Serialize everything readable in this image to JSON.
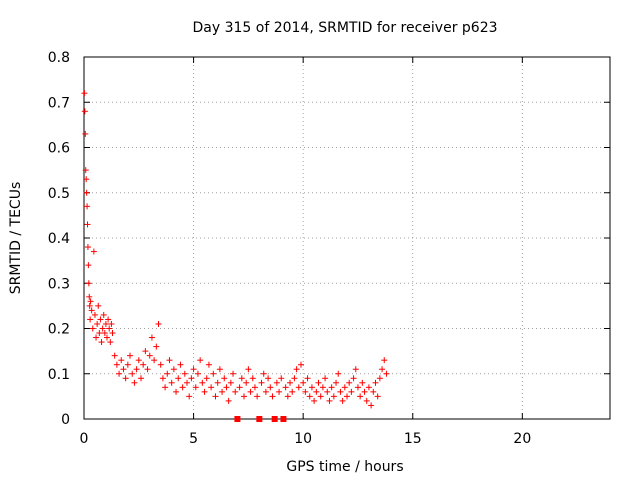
{
  "chart_data": {
    "type": "scatter",
    "title": "Day 315 of 2014, SRMTID for receiver p623",
    "xlabel": "GPS time / hours",
    "ylabel": "SRMTID / TECUs",
    "xlim": [
      0,
      24
    ],
    "ylim": [
      0,
      0.8
    ],
    "xticks": [
      0,
      5,
      10,
      15,
      20
    ],
    "yticks": [
      0,
      0.1,
      0.2,
      0.3,
      0.4,
      0.5,
      0.6,
      0.7,
      0.8
    ],
    "ytick_labels": [
      "0",
      "0.1",
      "0.2",
      "0.3",
      "0.4",
      "0.5",
      "0.6",
      "0.7",
      "0.8"
    ],
    "grid": true,
    "marker": "plus",
    "color": "#ff0000",
    "series": [
      {
        "points": [
          [
            0.02,
            0.72
          ],
          [
            0.04,
            0.68
          ],
          [
            0.06,
            0.63
          ],
          [
            0.08,
            0.55
          ],
          [
            0.1,
            0.53
          ],
          [
            0.12,
            0.5
          ],
          [
            0.14,
            0.47
          ],
          [
            0.16,
            0.43
          ],
          [
            0.18,
            0.38
          ],
          [
            0.2,
            0.34
          ],
          [
            0.22,
            0.3
          ],
          [
            0.24,
            0.27
          ],
          [
            0.26,
            0.25
          ],
          [
            0.28,
            0.22
          ],
          [
            0.3,
            0.26
          ],
          [
            0.35,
            0.24
          ],
          [
            0.4,
            0.2
          ],
          [
            0.45,
            0.37
          ],
          [
            0.5,
            0.23
          ],
          [
            0.55,
            0.18
          ],
          [
            0.6,
            0.21
          ],
          [
            0.65,
            0.25
          ],
          [
            0.7,
            0.19
          ],
          [
            0.75,
            0.22
          ],
          [
            0.8,
            0.17
          ],
          [
            0.85,
            0.2
          ],
          [
            0.9,
            0.23
          ],
          [
            0.95,
            0.19
          ],
          [
            1.0,
            0.21
          ],
          [
            1.05,
            0.18
          ],
          [
            1.1,
            0.22
          ],
          [
            1.15,
            0.2
          ],
          [
            1.2,
            0.17
          ],
          [
            1.25,
            0.21
          ],
          [
            1.3,
            0.19
          ],
          [
            1.4,
            0.14
          ],
          [
            1.5,
            0.12
          ],
          [
            1.6,
            0.1
          ],
          [
            1.7,
            0.13
          ],
          [
            1.8,
            0.11
          ],
          [
            1.9,
            0.09
          ],
          [
            2.0,
            0.12
          ],
          [
            2.1,
            0.14
          ],
          [
            2.2,
            0.1
          ],
          [
            2.3,
            0.08
          ],
          [
            2.4,
            0.11
          ],
          [
            2.5,
            0.13
          ],
          [
            2.6,
            0.09
          ],
          [
            2.7,
            0.12
          ],
          [
            2.8,
            0.15
          ],
          [
            2.9,
            0.11
          ],
          [
            3.0,
            0.14
          ],
          [
            3.1,
            0.18
          ],
          [
            3.2,
            0.13
          ],
          [
            3.3,
            0.16
          ],
          [
            3.4,
            0.21
          ],
          [
            3.5,
            0.12
          ],
          [
            3.6,
            0.09
          ],
          [
            3.7,
            0.07
          ],
          [
            3.8,
            0.1
          ],
          [
            3.9,
            0.13
          ],
          [
            4.0,
            0.08
          ],
          [
            4.1,
            0.11
          ],
          [
            4.2,
            0.06
          ],
          [
            4.3,
            0.09
          ],
          [
            4.4,
            0.12
          ],
          [
            4.5,
            0.07
          ],
          [
            4.6,
            0.1
          ],
          [
            4.7,
            0.08
          ],
          [
            4.8,
            0.05
          ],
          [
            4.9,
            0.09
          ],
          [
            5.0,
            0.11
          ],
          [
            5.1,
            0.07
          ],
          [
            5.2,
            0.1
          ],
          [
            5.3,
            0.13
          ],
          [
            5.4,
            0.08
          ],
          [
            5.5,
            0.06
          ],
          [
            5.6,
            0.09
          ],
          [
            5.7,
            0.12
          ],
          [
            5.8,
            0.07
          ],
          [
            5.9,
            0.1
          ],
          [
            6.0,
            0.05
          ],
          [
            6.1,
            0.08
          ],
          [
            6.2,
            0.11
          ],
          [
            6.3,
            0.06
          ],
          [
            6.4,
            0.09
          ],
          [
            6.5,
            0.07
          ],
          [
            6.6,
            0.04
          ],
          [
            6.7,
            0.08
          ],
          [
            6.8,
            0.1
          ],
          [
            6.9,
            0.06
          ],
          [
            7.0,
            0.0
          ],
          [
            7.1,
            0.07
          ],
          [
            7.2,
            0.09
          ],
          [
            7.3,
            0.05
          ],
          [
            7.4,
            0.08
          ],
          [
            7.5,
            0.11
          ],
          [
            7.6,
            0.06
          ],
          [
            7.7,
            0.09
          ],
          [
            7.8,
            0.07
          ],
          [
            7.9,
            0.05
          ],
          [
            8.0,
            0.0
          ],
          [
            8.1,
            0.08
          ],
          [
            8.2,
            0.1
          ],
          [
            8.3,
            0.06
          ],
          [
            8.4,
            0.09
          ],
          [
            8.5,
            0.07
          ],
          [
            8.6,
            0.05
          ],
          [
            8.7,
            0.0
          ],
          [
            8.8,
            0.08
          ],
          [
            8.9,
            0.06
          ],
          [
            9.0,
            0.09
          ],
          [
            9.1,
            0.0
          ],
          [
            9.2,
            0.07
          ],
          [
            9.3,
            0.05
          ],
          [
            9.4,
            0.08
          ],
          [
            9.5,
            0.06
          ],
          [
            9.6,
            0.09
          ],
          [
            9.7,
            0.11
          ],
          [
            9.8,
            0.07
          ],
          [
            9.9,
            0.12
          ],
          [
            10.0,
            0.08
          ],
          [
            10.1,
            0.06
          ],
          [
            10.2,
            0.09
          ],
          [
            10.3,
            0.05
          ],
          [
            10.4,
            0.07
          ],
          [
            10.5,
            0.04
          ],
          [
            10.6,
            0.06
          ],
          [
            10.7,
            0.08
          ],
          [
            10.8,
            0.05
          ],
          [
            10.9,
            0.07
          ],
          [
            11.0,
            0.09
          ],
          [
            11.1,
            0.06
          ],
          [
            11.2,
            0.04
          ],
          [
            11.3,
            0.07
          ],
          [
            11.4,
            0.05
          ],
          [
            11.5,
            0.08
          ],
          [
            11.6,
            0.1
          ],
          [
            11.7,
            0.06
          ],
          [
            11.8,
            0.04
          ],
          [
            11.9,
            0.07
          ],
          [
            12.0,
            0.05
          ],
          [
            12.1,
            0.08
          ],
          [
            12.2,
            0.06
          ],
          [
            12.3,
            0.09
          ],
          [
            12.4,
            0.11
          ],
          [
            12.5,
            0.07
          ],
          [
            12.6,
            0.05
          ],
          [
            12.7,
            0.08
          ],
          [
            12.8,
            0.06
          ],
          [
            12.9,
            0.04
          ],
          [
            13.0,
            0.07
          ],
          [
            13.1,
            0.03
          ],
          [
            13.2,
            0.06
          ],
          [
            13.3,
            0.08
          ],
          [
            13.4,
            0.05
          ],
          [
            13.5,
            0.09
          ],
          [
            13.6,
            0.11
          ],
          [
            13.7,
            0.13
          ],
          [
            13.8,
            0.1
          ]
        ]
      }
    ]
  }
}
